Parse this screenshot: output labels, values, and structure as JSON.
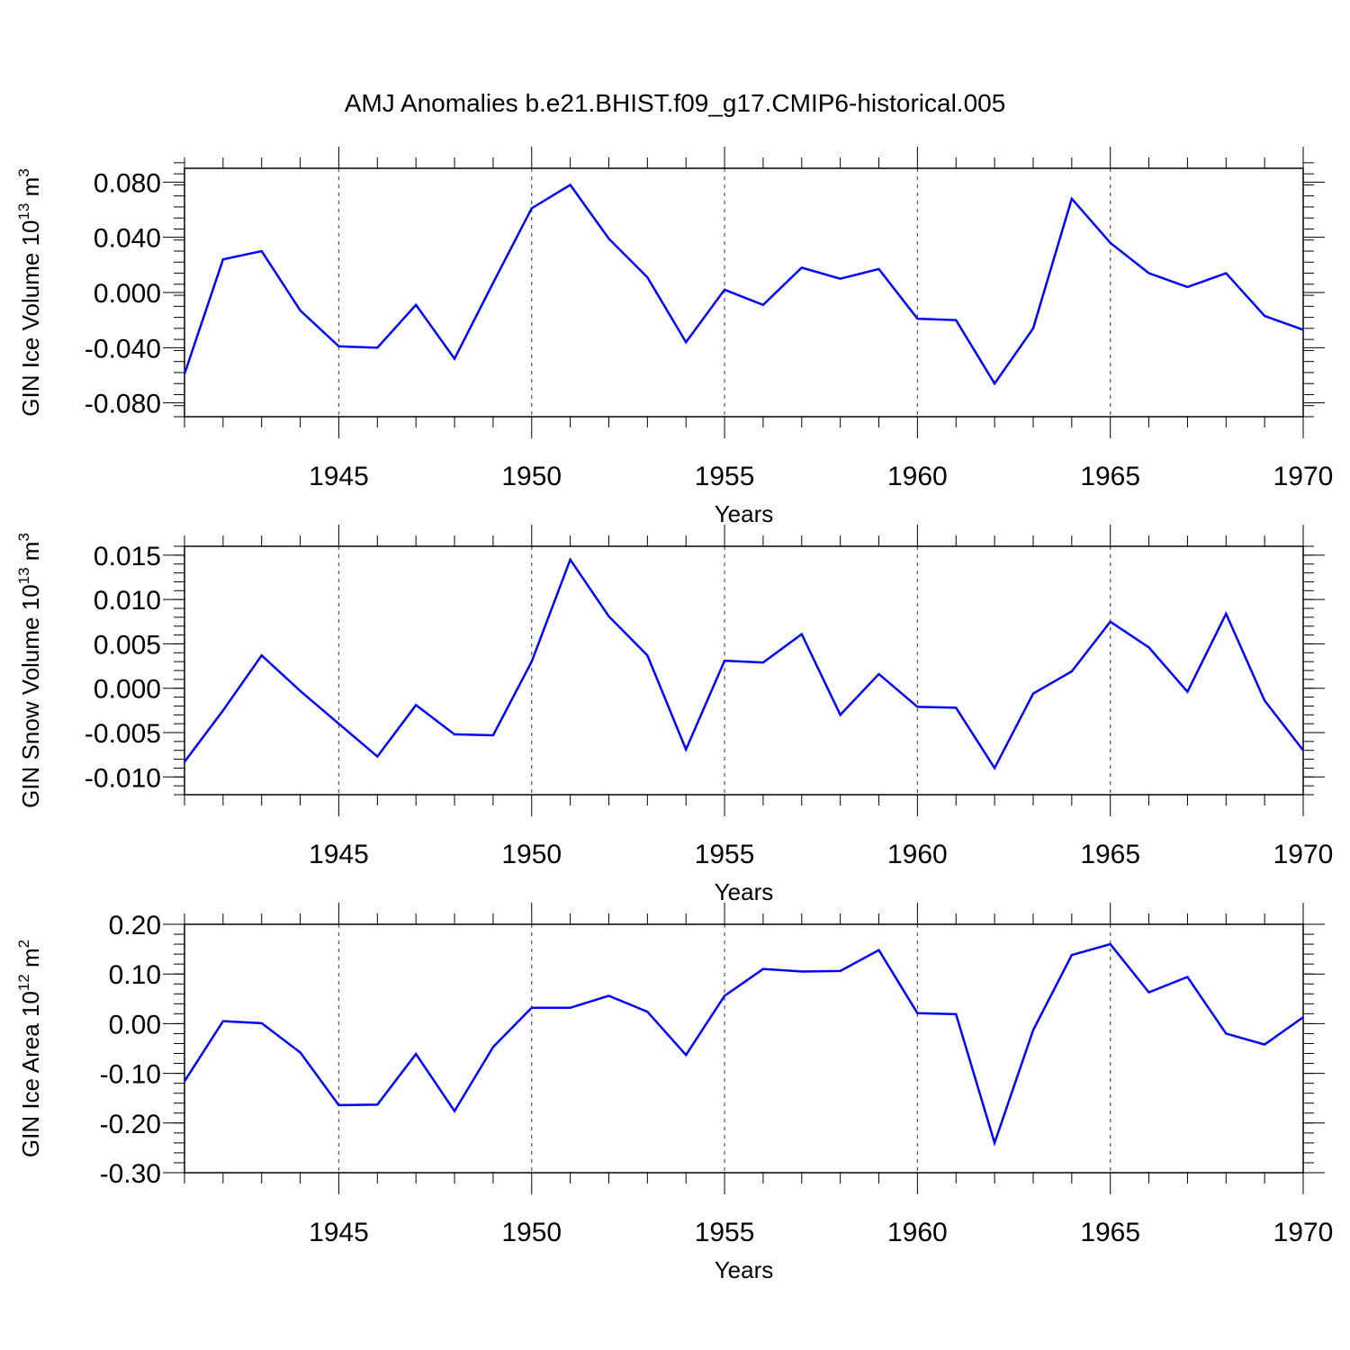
{
  "title": "AMJ Anomalies b.e21.BHIST.f09_g17.CMIP6-historical.005",
  "chart_data": [
    {
      "type": "line",
      "title": "AMJ Anomalies b.e21.BHIST.f09_g17.CMIP6-historical.005",
      "ylabel": "GIN Ice Volume 10",
      "ylabel_exp": "13",
      "ylabel_unit": " m",
      "ylabel_unit_exp": "3",
      "xlabel": "Years",
      "xlim": [
        1941,
        1970
      ],
      "ylim": [
        -0.09,
        0.09
      ],
      "yticks": [
        -0.08,
        -0.04,
        0.0,
        0.04,
        0.08
      ],
      "ytick_labels": [
        "-0.080",
        "-0.040",
        "0.000",
        "0.040",
        "0.080"
      ],
      "yminor_step": 0.008,
      "xticks": [
        1945,
        1950,
        1955,
        1960,
        1965,
        1970
      ],
      "xtick_labels": [
        "1945",
        "1950",
        "1955",
        "1960",
        "1965",
        "1970"
      ],
      "line_color": "#0000ff",
      "grid": "dashed vertical at major x ticks",
      "x": [
        1941,
        1942,
        1943,
        1944,
        1945,
        1946,
        1947,
        1948,
        1949,
        1950,
        1951,
        1952,
        1953,
        1954,
        1955,
        1956,
        1957,
        1958,
        1959,
        1960,
        1961,
        1962,
        1963,
        1964,
        1965,
        1966,
        1967,
        1968,
        1969,
        1970
      ],
      "series": [
        {
          "name": "GIN Ice Volume",
          "values": [
            -0.059,
            0.024,
            0.03,
            -0.013,
            -0.039,
            -0.04,
            -0.009,
            -0.048,
            0.007,
            0.061,
            0.078,
            0.039,
            0.011,
            -0.036,
            0.002,
            -0.009,
            0.018,
            0.01,
            0.017,
            -0.019,
            -0.02,
            -0.066,
            -0.026,
            0.068,
            0.036,
            0.014,
            0.004,
            0.014,
            -0.017,
            -0.027
          ]
        }
      ]
    },
    {
      "type": "line",
      "ylabel": "GIN Snow Volume 10",
      "ylabel_exp": "13",
      "ylabel_unit": " m",
      "ylabel_unit_exp": "3",
      "xlabel": "Years",
      "xlim": [
        1941,
        1970
      ],
      "ylim": [
        -0.012,
        0.016
      ],
      "yticks": [
        -0.01,
        -0.005,
        0.0,
        0.005,
        0.01,
        0.015
      ],
      "ytick_labels": [
        "-0.010",
        "-0.005",
        "0.000",
        "0.005",
        "0.010",
        "0.015"
      ],
      "yminor_step": 0.001,
      "xticks": [
        1945,
        1950,
        1955,
        1960,
        1965,
        1970
      ],
      "xtick_labels": [
        "1945",
        "1950",
        "1955",
        "1960",
        "1965",
        "1970"
      ],
      "line_color": "#0000ff",
      "grid": "dashed vertical at major x ticks",
      "x": [
        1941,
        1942,
        1943,
        1944,
        1945,
        1946,
        1947,
        1948,
        1949,
        1950,
        1951,
        1952,
        1953,
        1954,
        1955,
        1956,
        1957,
        1958,
        1959,
        1960,
        1961,
        1962,
        1963,
        1964,
        1965,
        1966,
        1967,
        1968,
        1969,
        1970
      ],
      "series": [
        {
          "name": "GIN Snow Volume",
          "values": [
            -0.0083,
            -0.0025,
            0.0037,
            -0.0003,
            -0.004,
            -0.0077,
            -0.0019,
            -0.0052,
            -0.0053,
            0.003,
            0.0145,
            0.0081,
            0.0037,
            -0.0069,
            0.0031,
            0.0029,
            0.0061,
            -0.003,
            0.0016,
            -0.0021,
            -0.0022,
            -0.009,
            -0.0006,
            0.0019,
            0.0075,
            0.0046,
            -0.0004,
            0.0084,
            -0.0014,
            -0.007
          ]
        }
      ]
    },
    {
      "type": "line",
      "ylabel": "GIN Ice Area 10",
      "ylabel_exp": "12",
      "ylabel_unit": " m",
      "ylabel_unit_exp": "2",
      "xlabel": "Years",
      "xlim": [
        1941,
        1970
      ],
      "ylim": [
        -0.3,
        0.2
      ],
      "yticks": [
        -0.3,
        -0.2,
        -0.1,
        0.0,
        0.1,
        0.2
      ],
      "ytick_labels": [
        "-0.30",
        "-0.20",
        "-0.10",
        "0.00",
        "0.10",
        "0.20"
      ],
      "yminor_step": 0.02,
      "xticks": [
        1945,
        1950,
        1955,
        1960,
        1965,
        1970
      ],
      "xtick_labels": [
        "1945",
        "1950",
        "1955",
        "1960",
        "1965",
        "1970"
      ],
      "line_color": "#0000ff",
      "grid": "dashed vertical at major x ticks",
      "x": [
        1941,
        1942,
        1943,
        1944,
        1945,
        1946,
        1947,
        1948,
        1949,
        1950,
        1951,
        1952,
        1953,
        1954,
        1955,
        1956,
        1957,
        1958,
        1959,
        1960,
        1961,
        1962,
        1963,
        1964,
        1965,
        1966,
        1967,
        1968,
        1969,
        1970
      ],
      "series": [
        {
          "name": "GIN Ice Area",
          "values": [
            -0.116,
            0.005,
            0.001,
            -0.058,
            -0.164,
            -0.163,
            -0.061,
            -0.176,
            -0.047,
            0.032,
            0.032,
            0.056,
            0.024,
            -0.063,
            0.056,
            0.11,
            0.105,
            0.106,
            0.148,
            0.021,
            0.019,
            -0.24,
            -0.013,
            0.138,
            0.16,
            0.063,
            0.094,
            -0.02,
            -0.042,
            0.013
          ]
        }
      ]
    }
  ]
}
